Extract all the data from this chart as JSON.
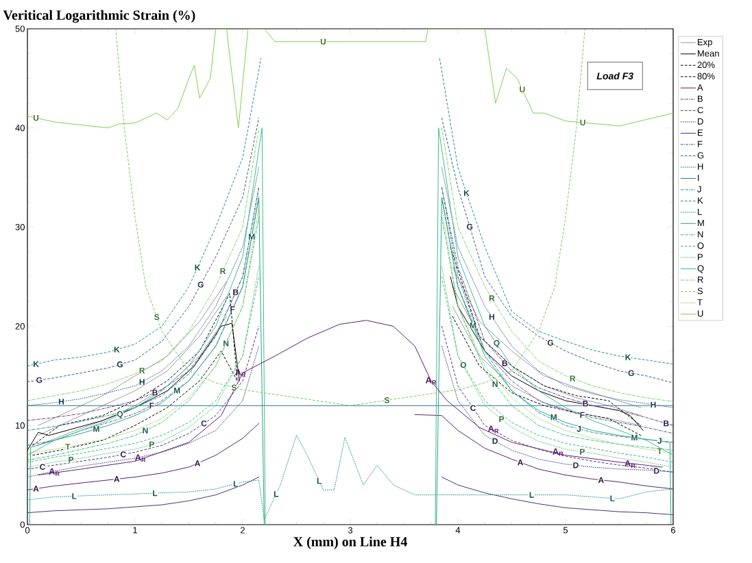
{
  "chart_data": {
    "type": "line",
    "ylabel": "Veritical Logarithmic Strain (%)",
    "xlabel": "X (mm) on Line H4",
    "xlim": [
      0,
      6
    ],
    "ylim": [
      0,
      50
    ],
    "xticks": [
      0,
      1,
      2,
      3,
      4,
      5,
      6
    ],
    "yticks": [
      0,
      10,
      20,
      30,
      40,
      50
    ],
    "legend": "right",
    "annotations": [
      "Load F3",
      {
        "text": "A$_{R}$",
        "x": 0.25,
        "y": 5.3
      },
      {
        "text": "A$_{R}$",
        "x": 1.05,
        "y": 6.7
      },
      {
        "text": "A$_{R}$",
        "x": 1.98,
        "y": 15.3
      },
      {
        "text": "A$_{R}$",
        "x": 3.75,
        "y": 14.5
      },
      {
        "text": "A$_{R}$",
        "x": 4.33,
        "y": 9.6
      },
      {
        "text": "A$_{R}$",
        "x": 4.93,
        "y": 7.3
      },
      {
        "text": "A$_{R}$",
        "x": 5.6,
        "y": 6.1
      }
    ],
    "series": [
      {
        "name": "Exp",
        "color": "#9a9a9a",
        "line_style": "solid",
        "marker": "none",
        "x": [
          0.1,
          0.4,
          0.7,
          1.0,
          1.3,
          1.6,
          1.85,
          3.0,
          3.95,
          4.2,
          4.5,
          4.8,
          5.1,
          5.4,
          5.7
        ],
        "values": [
          9,
          10.5,
          12,
          13.5,
          15.5,
          19,
          23,
          null,
          24,
          19,
          16,
          14,
          12.8,
          12,
          11
        ]
      },
      {
        "color": "#9a9a9a",
        "line_style": "solid",
        "x": [
          0.1,
          0.4,
          0.7,
          1.0,
          1.3,
          1.6,
          1.85,
          3.0,
          3.95,
          4.2,
          4.5,
          4.8,
          5.1,
          5.4,
          5.7
        ],
        "values": [
          8,
          9.3,
          10.5,
          12,
          14,
          17,
          21,
          null,
          22,
          17,
          14,
          12.3,
          11.3,
          10.7,
          10
        ]
      },
      {
        "color": "#9a9a9a",
        "line_style": "solid",
        "x": [
          0.1,
          0.4,
          0.7,
          1.0,
          1.3,
          1.6,
          1.85,
          3.0,
          3.95,
          4.2,
          4.5,
          4.8,
          5.1,
          5.4,
          5.7
        ],
        "values": [
          10,
          11.5,
          13,
          15,
          17,
          20.5,
          24.5,
          null,
          26,
          20.5,
          17.5,
          15,
          13.8,
          12.8,
          11.8
        ]
      },
      {
        "name": "Mean",
        "color": "#000000",
        "line_style": "solid",
        "marker": "none",
        "x": [
          0,
          0.1,
          0.2,
          0.4,
          0.7,
          1.0,
          1.3,
          1.55,
          1.8,
          1.9,
          1.97,
          3.0,
          3.93,
          4.0,
          4.25,
          4.5,
          4.75,
          5,
          5.25,
          5.5,
          5.6,
          5.72
        ],
        "values": [
          7.5,
          9.3,
          9.0,
          9.6,
          10.5,
          11.8,
          13.5,
          16,
          20,
          20.3,
          14.5,
          null,
          25,
          22,
          17.5,
          15,
          13.5,
          12.5,
          12,
          11.5,
          11,
          9.5
        ]
      },
      {
        "name": "20%",
        "color": "#000000",
        "line_style": "dashed",
        "marker": "none",
        "x": [
          0.05,
          0.3,
          0.7,
          1.0,
          1.3,
          1.6,
          1.8,
          1.95,
          3.0,
          3.95,
          4.2,
          4.5,
          4.8,
          5.1,
          5.4,
          5.7
        ],
        "values": [
          7,
          7.5,
          8.5,
          10,
          11.8,
          14.5,
          17.5,
          14.5,
          null,
          21,
          16,
          13.3,
          12,
          11.3,
          10.7,
          9
        ]
      },
      {
        "name": "80%",
        "color": "#000000",
        "line_style": "dashed",
        "marker": "none",
        "x": [
          0.05,
          0.3,
          0.7,
          1.0,
          1.3,
          1.6,
          1.88,
          1.95,
          3.0,
          3.93,
          4.2,
          4.5,
          4.8,
          5.1,
          5.4,
          5.7
        ],
        "values": [
          8,
          10,
          11,
          12.5,
          14.5,
          17.5,
          23.3,
          14.5,
          null,
          28,
          19,
          16,
          14,
          13,
          12.5,
          10
        ]
      },
      {
        "name": "A",
        "color": "#5a1d6e",
        "line_style": "solid",
        "x": [
          0,
          0.25,
          0.5,
          0.75,
          1,
          1.25,
          1.5,
          1.75,
          2,
          2.15,
          3.0,
          3.6,
          3.85,
          4,
          4.25,
          4.5,
          4.75,
          5,
          5.25,
          5.5,
          5.75,
          6
        ],
        "values": [
          3.5,
          3.9,
          4.2,
          4.5,
          4.8,
          5.2,
          5.8,
          7,
          8.7,
          10.2,
          null,
          11.1,
          11,
          9.5,
          7.7,
          6.6,
          5.6,
          5.0,
          4.6,
          4.3,
          3.9,
          3.6
        ]
      },
      {
        "name": "B",
        "color": "#5b2a7d",
        "line_style": "dashdot",
        "x": [
          0,
          0.25,
          0.5,
          0.75,
          1,
          1.25,
          1.5,
          1.75,
          2,
          2.15,
          3.0,
          3.85,
          4,
          4.25,
          4.5,
          4.75,
          5,
          5.25,
          5.5,
          5.75,
          6
        ],
        "values": [
          10.5,
          10.8,
          11.2,
          11.8,
          12.5,
          13.6,
          15.5,
          19,
          25,
          34,
          null,
          34,
          26,
          18.5,
          15.5,
          13.8,
          12.8,
          12.0,
          11.5,
          10.8,
          10.0
        ]
      },
      {
        "name": "C",
        "color": "#4b3686",
        "line_style": "dashed",
        "x": [
          0,
          0.25,
          0.5,
          0.75,
          1,
          1.25,
          1.5,
          1.75,
          2,
          2.15,
          3.0,
          3.85,
          4,
          4.25,
          4.5,
          4.75,
          5,
          5.25,
          5.5,
          5.75,
          6
        ],
        "values": [
          5.6,
          6.0,
          6.4,
          6.8,
          7.3,
          8.0,
          9.2,
          11.0,
          14.5,
          20,
          null,
          20,
          14,
          10,
          8.5,
          7.6,
          6.9,
          6.4,
          6.0,
          5.7,
          5.3
        ]
      },
      {
        "name": "D",
        "color": "#44418a",
        "line_style": "dotted",
        "x": [
          0,
          0.25,
          0.5,
          0.75,
          1,
          1.25,
          1.5,
          1.75,
          2,
          2.15,
          3.0,
          3.85,
          4,
          4.25,
          4.5,
          4.75,
          5,
          5.25,
          5.5,
          5.75,
          6
        ],
        "values": [
          4.8,
          5.4,
          5.9,
          6.3,
          6.7,
          7.3,
          8.2,
          9.5,
          12.5,
          18,
          null,
          18,
          12.5,
          9.0,
          7.5,
          6.6,
          6.1,
          5.8,
          5.6,
          5.5,
          5.3
        ]
      },
      {
        "name": "E",
        "color": "#46307f",
        "line_style": "solid",
        "x": [
          0,
          0.25,
          0.5,
          0.75,
          1,
          1.25,
          1.5,
          1.75,
          2,
          2.15,
          3.0,
          3.85,
          4,
          4.25,
          4.5,
          4.75,
          5,
          5.25,
          5.5,
          5.75,
          6
        ],
        "values": [
          1.2,
          1.4,
          1.5,
          1.6,
          1.8,
          2.0,
          2.4,
          3.0,
          4.0,
          4.8,
          null,
          4.8,
          4.0,
          3.2,
          2.6,
          2.1,
          1.7,
          1.5,
          1.3,
          1.2,
          1.0
        ]
      },
      {
        "name": "F",
        "color": "#3f4d8b",
        "line_style": "dashdot",
        "x": [
          0,
          0.25,
          0.5,
          0.75,
          1,
          1.25,
          1.5,
          1.75,
          2,
          2.15,
          3.0,
          3.85,
          4,
          4.25,
          4.5,
          4.75,
          5,
          5.25,
          5.5,
          5.75,
          6
        ],
        "values": [
          8,
          8.5,
          9.5,
          10.3,
          11.2,
          12.5,
          14.5,
          18,
          24,
          33,
          null,
          33,
          24,
          17.5,
          14.5,
          12.5,
          11.5,
          10.8,
          10.3,
          9.8,
          9.2
        ]
      },
      {
        "name": "G",
        "color": "#38598c",
        "line_style": "dashed",
        "x": [
          0,
          0.25,
          0.5,
          0.75,
          1,
          1.25,
          1.5,
          1.75,
          2,
          2.15,
          3.0,
          3.85,
          4,
          4.25,
          4.5,
          4.75,
          5,
          5.25,
          5.5,
          5.75,
          6
        ],
        "values": [
          14.4,
          14.8,
          15.3,
          15.8,
          16.6,
          18.5,
          22,
          27,
          33,
          41,
          null,
          41,
          34,
          25,
          21,
          19,
          17.5,
          16.4,
          15.5,
          15,
          14.3
        ]
      },
      {
        "name": "H",
        "color": "#31668e",
        "line_style": "dotted",
        "x": [
          0,
          0.25,
          0.5,
          0.75,
          1,
          1.25,
          1.5,
          1.75,
          2,
          2.15,
          3.0,
          3.85,
          4,
          4.25,
          4.5,
          4.75,
          5,
          5.25,
          5.5,
          5.75,
          6
        ],
        "values": [
          12,
          12.3,
          12.7,
          13.3,
          14,
          15.5,
          18,
          22,
          28,
          36,
          null,
          36,
          28,
          22,
          18,
          15.5,
          14,
          13.2,
          12.6,
          12.2,
          11.8
        ]
      },
      {
        "name": "I",
        "color": "#2c728e",
        "line_style": "solid",
        "x": [
          0,
          2.15,
          3.85,
          6
        ],
        "values": [
          12,
          12,
          12,
          12
        ]
      },
      {
        "name": "J",
        "color": "#26808e",
        "line_style": "dashdot",
        "x": [
          0,
          0.25,
          0.5,
          0.75,
          1,
          1.25,
          1.5,
          1.75,
          2,
          2.15,
          3.0,
          3.85,
          4,
          4.25,
          4.5,
          4.75,
          5,
          5.25,
          5.5,
          5.75,
          6
        ],
        "values": [
          9.5,
          9.9,
          10.4,
          11,
          11.8,
          13,
          15.2,
          19,
          25,
          34,
          null,
          34,
          25,
          17.5,
          13.5,
          11.3,
          10.0,
          9.3,
          8.9,
          8.6,
          8.3
        ]
      },
      {
        "name": "K",
        "color": "#218e8d",
        "line_style": "dashed",
        "x": [
          0,
          0.25,
          0.5,
          0.75,
          1,
          1.25,
          1.5,
          1.75,
          2,
          2.17,
          3.0,
          3.83,
          4,
          4.25,
          4.5,
          4.75,
          5,
          5.25,
          5.5,
          5.75,
          6
        ],
        "values": [
          16,
          16.6,
          16.9,
          17.4,
          18.2,
          20,
          24,
          30,
          37,
          47,
          null,
          47,
          36,
          28,
          21.5,
          19.5,
          18.5,
          17.6,
          17,
          16.6,
          16.2
        ]
      },
      {
        "name": "L",
        "color": "#1f9a8a",
        "line_style": "dotted",
        "x": [
          0,
          0.25,
          0.5,
          0.75,
          1,
          1.25,
          1.5,
          1.75,
          2,
          2.15,
          2.2,
          2.35,
          2.5,
          2.6,
          2.75,
          2.85,
          2.95,
          3.05,
          3.12,
          3.25,
          3.4,
          3.6,
          3.85,
          4,
          4.25,
          4.5,
          4.75,
          5,
          5.25,
          5.5,
          5.75,
          6
        ],
        "values": [
          2.5,
          2.8,
          2.9,
          3.0,
          3.1,
          3.2,
          3.3,
          3.6,
          4.3,
          4.5,
          0.5,
          4,
          9,
          7,
          3.5,
          3.5,
          8.8,
          6,
          4,
          6,
          4,
          3,
          3.0,
          3.0,
          3.0,
          3.0,
          3.0,
          3.0,
          2.8,
          2.6,
          3.3,
          3.6
        ]
      },
      {
        "name": "M",
        "color": "#22a785",
        "line_style": "solid",
        "x": [
          0.02,
          0.03,
          0.25,
          0.5,
          0.75,
          1,
          1.25,
          1.5,
          1.75,
          2,
          2.15,
          2.2,
          3.0,
          3.8,
          3.85,
          4,
          4.25,
          4.5,
          4.75,
          5,
          5.25,
          5.5,
          5.75,
          5.97,
          5.98
        ],
        "values": [
          0,
          7.8,
          8.5,
          9.2,
          10,
          11,
          12.3,
          14.5,
          18,
          24,
          33,
          0,
          null,
          0,
          33,
          24,
          17,
          13.5,
          11.5,
          10.3,
          9.5,
          9,
          8.6,
          8.3,
          0
        ]
      },
      {
        "name": "N",
        "color": "#2eb37c",
        "line_style": "dashdot",
        "x": [
          0,
          0.25,
          0.5,
          0.75,
          1,
          1.25,
          1.5,
          1.75,
          2,
          2.15,
          3.0,
          3.85,
          4,
          4.25,
          4.5,
          4.75,
          5,
          5.25,
          5.5,
          5.75,
          6
        ],
        "values": [
          6.5,
          7,
          7.6,
          8.2,
          9,
          10.3,
          12.5,
          16,
          22,
          31,
          null,
          31,
          22,
          15.5,
          12,
          10,
          9,
          8.5,
          8.1,
          7.8,
          7.5
        ]
      },
      {
        "name": "O",
        "color": "#3fbc73",
        "line_style": "dashed",
        "x": [
          0,
          0.25,
          0.5,
          0.75,
          1,
          1.25,
          1.5,
          1.75,
          2,
          2.15,
          3.0,
          3.85,
          4,
          4.25,
          4.5,
          4.75,
          5,
          5.25,
          5.5,
          5.75,
          6
        ],
        "values": [
          6.3,
          6.8,
          7.2,
          7.7,
          8.2,
          9,
          10.3,
          12.5,
          17,
          25,
          null,
          25,
          17,
          12.5,
          10.3,
          9.0,
          8.2,
          7.7,
          7.2,
          6.8,
          6.3
        ]
      },
      {
        "name": "P",
        "color": "#52c569",
        "line_style": "dotted",
        "x": [
          0,
          0.25,
          0.5,
          0.75,
          1,
          1.25,
          1.5,
          1.75,
          2,
          2.15,
          3.0,
          3.85,
          4,
          4.25,
          4.5,
          4.75,
          5,
          5.25,
          5.5,
          5.75,
          6
        ],
        "values": [
          5.8,
          6.3,
          6.7,
          7.2,
          7.6,
          8.4,
          9.8,
          12,
          17,
          26,
          null,
          26,
          17,
          12,
          9.8,
          8.4,
          7.6,
          7.2,
          6.7,
          6.3,
          5.8
        ]
      },
      {
        "name": "Q",
        "color": "#3dbd8c",
        "line_style": "solid",
        "x": [
          0,
          0.25,
          0.5,
          0.75,
          1,
          1.25,
          1.5,
          1.75,
          2,
          2.18,
          2.21,
          3.0,
          3.79,
          3.82,
          4,
          4.25,
          4.5,
          4.75,
          5,
          5.25,
          5.5,
          5.75,
          6
        ],
        "values": [
          7,
          8.5,
          9.5,
          10.5,
          11.8,
          13.5,
          16,
          20,
          27,
          40,
          0,
          null,
          0,
          40,
          27,
          20,
          16,
          13.5,
          11.8,
          10.5,
          9.5,
          8.5,
          7
        ]
      },
      {
        "name": "R",
        "color": "#6ccd5a",
        "line_style": "dashdot",
        "x": [
          0,
          0.25,
          0.5,
          0.75,
          1,
          1.25,
          1.5,
          1.75,
          2,
          2.15,
          3.0,
          3.85,
          4,
          4.25,
          4.5,
          4.75,
          5,
          5.25,
          5.5,
          5.75,
          6
        ],
        "values": [
          12.5,
          13,
          13.5,
          14.2,
          15.2,
          16.5,
          19.5,
          24,
          30,
          40,
          null,
          40,
          30,
          24,
          19.5,
          16.5,
          15,
          14,
          13.3,
          12.8,
          12.4
        ]
      },
      {
        "name": "S",
        "color": "#6ece58",
        "line_style": "dashed",
        "x": [
          0.82,
          0.9,
          1.0,
          1.1,
          1.25,
          1.5,
          1.75,
          2,
          2.5,
          3,
          3.5,
          4,
          4.25,
          4.5,
          4.75,
          4.9,
          5.0,
          5.1,
          5.18
        ],
        "values": [
          50,
          40,
          31,
          24,
          19.5,
          15.5,
          14.3,
          13.6,
          12.8,
          12.0,
          12.8,
          13.6,
          14.3,
          15.5,
          19.5,
          24,
          31,
          40,
          50
        ]
      },
      {
        "name": "T",
        "color": "#86d549",
        "line_style": "dotted",
        "x": [
          0,
          0.25,
          0.5,
          0.75,
          1,
          1.25,
          1.5,
          1.75,
          2,
          2.15,
          3.0,
          3.85,
          4,
          4.25,
          4.5,
          4.75,
          5,
          5.25,
          5.5,
          5.75,
          6
        ],
        "values": [
          7.2,
          7.6,
          8.1,
          8.7,
          9.5,
          10.7,
          12.8,
          16,
          22,
          32,
          null,
          32,
          22,
          16,
          12.8,
          10.7,
          9.5,
          8.7,
          8.1,
          7.6,
          7.2
        ]
      },
      {
        "name": "U",
        "color": "#7fcf4a",
        "line_style": "solid",
        "x": [
          0,
          0.25,
          0.5,
          0.75,
          0.85,
          1,
          1.2,
          1.3,
          1.4,
          1.5,
          1.55,
          1.6,
          1.7,
          1.75,
          1.85,
          1.96,
          2.05,
          2.2,
          2.3,
          3.7,
          3.72,
          4.25,
          4.35,
          4.45,
          4.55,
          4.7,
          4.8,
          5,
          5.5,
          6
        ],
        "values": [
          41.2,
          40.6,
          40.3,
          40,
          40.4,
          40.5,
          41.5,
          40.8,
          42,
          45,
          46.3,
          43,
          45,
          50,
          50,
          40,
          50,
          50,
          48.7,
          48.7,
          50,
          50,
          42.5,
          46,
          45,
          41.5,
          41.5,
          40.7,
          40.2,
          41.5
        ]
      },
      {
        "color": "#5a1d6e",
        "line_style": "solid",
        "x": [
          0.1,
          0.5,
          1.0,
          1.5,
          1.8,
          2.0,
          2.3,
          2.6,
          2.9,
          3.15,
          3.4,
          3.6,
          3.75,
          3.9,
          4.2,
          4.5,
          5.0,
          5.5,
          5.9
        ],
        "values": [
          5.0,
          5.6,
          6.4,
          8.3,
          11,
          15.3,
          17,
          18.8,
          20.2,
          20.6,
          20,
          18,
          14.5,
          12.5,
          9.8,
          8.3,
          7.0,
          6.3,
          5.8
        ]
      }
    ]
  }
}
